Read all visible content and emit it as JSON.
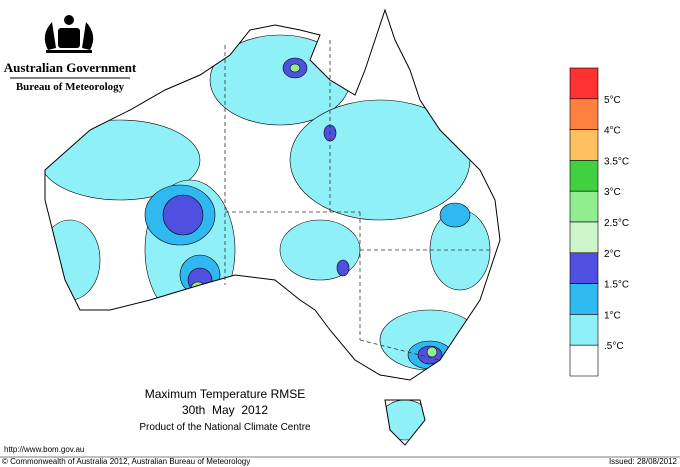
{
  "header": {
    "agency": "Australian Government",
    "bureau": "Bureau of Meteorology"
  },
  "map": {
    "title": "Maximum Temperature RMSE",
    "date": "30th  May  2012",
    "product": "Product of the National Climate Centre"
  },
  "legend": {
    "colors": [
      "#ff3030",
      "#ff8040",
      "#ffc060",
      "#40d040",
      "#90ee90",
      "#ccf5cc",
      "#5050e0",
      "#30b8f0",
      "#90f0f8",
      "#ffffff"
    ],
    "labels": [
      "5°C",
      "4°C",
      "3.5°C",
      "3°C",
      "2.5°C",
      "2°C",
      "1.5°C",
      "1°C",
      ".5°C"
    ]
  },
  "footer": {
    "url": "http://www.bom.gov.au",
    "copyright": "© Commonwealth of Australia 2012, Australian Bureau of Meteorology",
    "issued": "Issued: 28/08/2012"
  }
}
